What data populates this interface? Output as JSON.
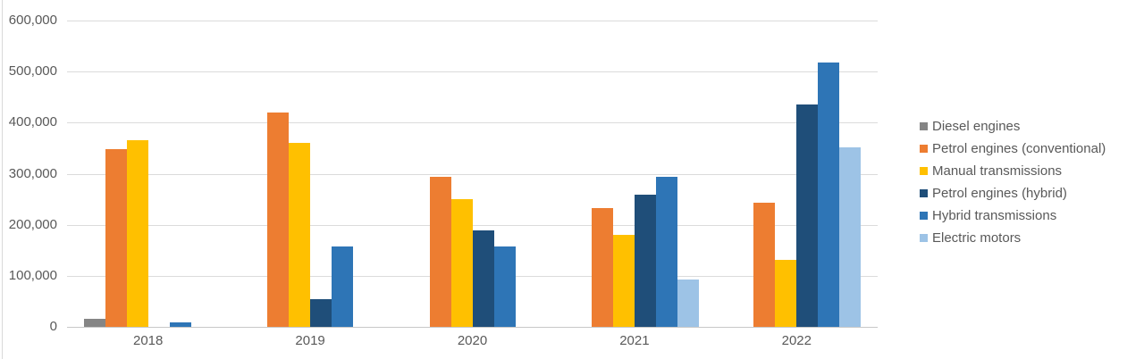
{
  "chart_data": {
    "type": "bar",
    "title": "",
    "xlabel": "",
    "ylabel": "",
    "categories": [
      "2018",
      "2019",
      "2020",
      "2021",
      "2022"
    ],
    "series": [
      {
        "name": "Diesel engines",
        "color": "#858585",
        "values": [
          15000,
          0,
          0,
          0,
          0
        ]
      },
      {
        "name": "Petrol engines (conventional)",
        "color": "#ED7D31",
        "values": [
          348000,
          420000,
          294000,
          232000,
          243000
        ]
      },
      {
        "name": "Manual transmissions",
        "color": "#FFC000",
        "values": [
          365000,
          360000,
          250000,
          180000,
          131000
        ]
      },
      {
        "name": "Petrol engines (hybrid)",
        "color": "#1F4E79",
        "values": [
          0,
          54000,
          189000,
          259000,
          435000
        ]
      },
      {
        "name": "Hybrid transmissions",
        "color": "#2E75B6",
        "values": [
          8000,
          157000,
          157000,
          294000,
          518000
        ]
      },
      {
        "name": "Electric motors",
        "color": "#9DC3E6",
        "values": [
          0,
          0,
          0,
          92000,
          352000
        ]
      }
    ],
    "ylim": [
      0,
      600000
    ],
    "ytick_step": 100000,
    "ytick_labels": [
      "0",
      "100,000",
      "200,000",
      "300,000",
      "400,000",
      "500,000",
      "600,000"
    ],
    "grid": true,
    "legend_position": "right"
  },
  "colors": {
    "background": "#ffffff",
    "gridline": "#DBDBDB",
    "axis_line": "#C8C8C8",
    "pane_border": "#D9D9D9",
    "text": "#595959"
  }
}
